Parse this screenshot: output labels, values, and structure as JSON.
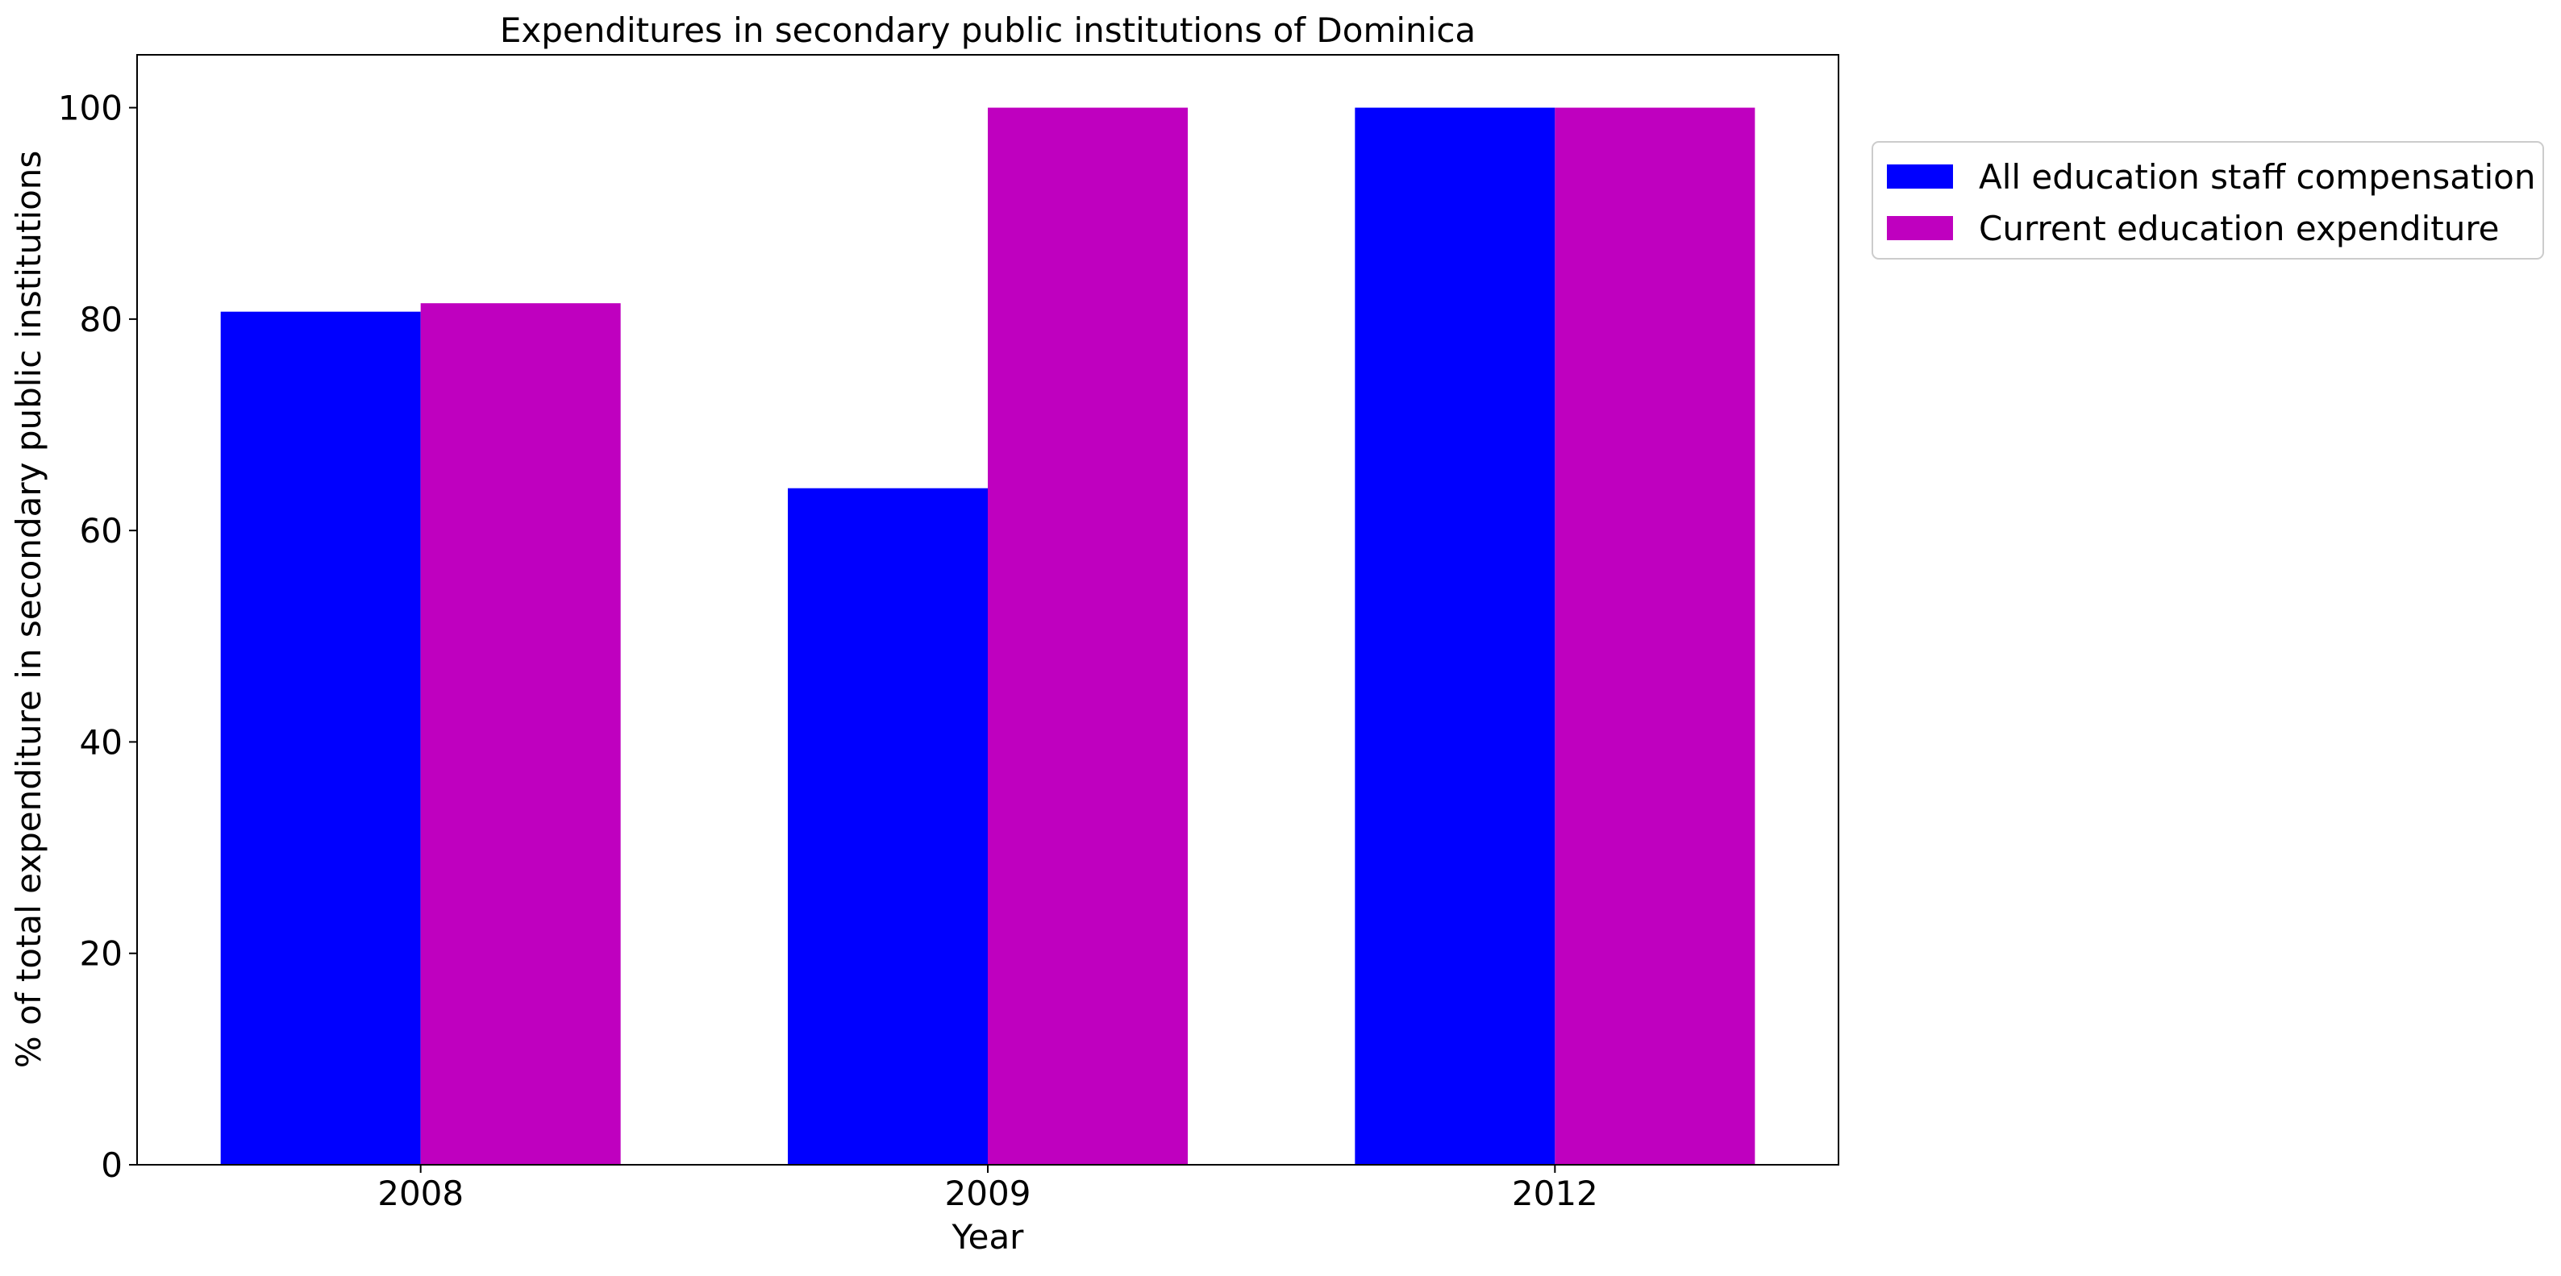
{
  "chart_data": {
    "type": "bar",
    "title": "Expenditures in secondary public institutions of Dominica",
    "xlabel": "Year",
    "ylabel": "% of total expenditure in secondary public institutions",
    "categories": [
      "2008",
      "2009",
      "2012"
    ],
    "series": [
      {
        "name": "All education staff compensation",
        "color": "#0000ff",
        "values": [
          80.7,
          64.0,
          100.0
        ]
      },
      {
        "name": "Current education expenditure",
        "color": "#bf00bf",
        "values": [
          81.5,
          100.0,
          100.0
        ]
      }
    ],
    "ylim": [
      0,
      105
    ],
    "yticks": [
      0,
      20,
      40,
      60,
      80,
      100
    ],
    "grid": false,
    "legend_position": "outside-right-top"
  }
}
